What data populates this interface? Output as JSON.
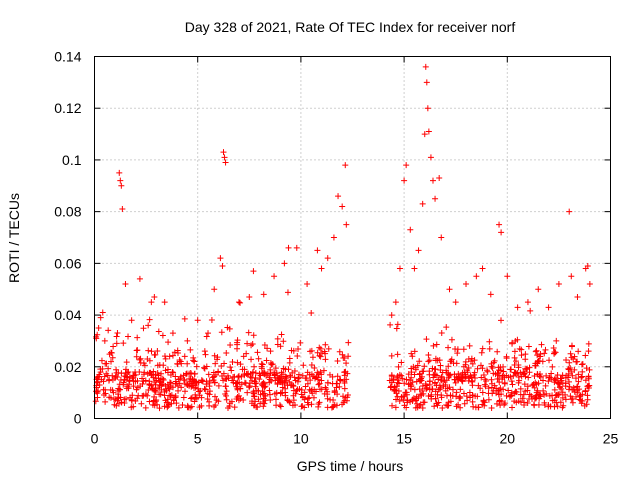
{
  "chart_data": {
    "type": "scatter",
    "title": "Day 328 of 2021, Rate Of TEC Index for receiver norf",
    "xlabel": "GPS time / hours",
    "ylabel": "ROTI / TECUs",
    "xlim": [
      0,
      25
    ],
    "ylim": [
      0,
      0.14
    ],
    "x_ticks": [
      0,
      5,
      10,
      15,
      20,
      25
    ],
    "x_tick_labels": [
      "0",
      "5",
      "10",
      "15",
      "20",
      "25"
    ],
    "y_ticks": [
      0,
      0.02,
      0.04,
      0.06,
      0.08,
      0.1,
      0.12,
      0.14
    ],
    "y_tick_labels": [
      "0",
      "0.02",
      "0.04",
      "0.06",
      "0.08",
      "0.1",
      "0.12",
      "0.14"
    ],
    "grid": true,
    "marker": "plus",
    "series_color": "#ff0000",
    "data_gaps_hours": [
      [
        12.3,
        14.3
      ]
    ],
    "series": [
      {
        "name": "ROTI",
        "points": [
          [
            0.1,
            0.012
          ],
          [
            0.2,
            0.035
          ],
          [
            0.3,
            0.039
          ],
          [
            0.4,
            0.041
          ],
          [
            0.5,
            0.03
          ],
          [
            0.8,
            0.022
          ],
          [
            1.2,
            0.095
          ],
          [
            1.25,
            0.092
          ],
          [
            1.3,
            0.09
          ],
          [
            1.35,
            0.081
          ],
          [
            1.5,
            0.052
          ],
          [
            1.8,
            0.038
          ],
          [
            2.2,
            0.054
          ],
          [
            2.6,
            0.036
          ],
          [
            2.9,
            0.047
          ],
          [
            3.4,
            0.045
          ],
          [
            3.8,
            0.033
          ],
          [
            4.5,
            0.03
          ],
          [
            5.0,
            0.038
          ],
          [
            5.5,
            0.033
          ],
          [
            5.8,
            0.05
          ],
          [
            6.1,
            0.062
          ],
          [
            6.2,
            0.059
          ],
          [
            6.25,
            0.103
          ],
          [
            6.3,
            0.101
          ],
          [
            6.35,
            0.099
          ],
          [
            7.0,
            0.045
          ],
          [
            7.5,
            0.047
          ],
          [
            7.7,
            0.057
          ],
          [
            8.2,
            0.048
          ],
          [
            8.7,
            0.055
          ],
          [
            9.2,
            0.06
          ],
          [
            9.4,
            0.066
          ],
          [
            9.8,
            0.066
          ],
          [
            10.3,
            0.052
          ],
          [
            10.8,
            0.065
          ],
          [
            11.0,
            0.058
          ],
          [
            11.3,
            0.062
          ],
          [
            11.6,
            0.07
          ],
          [
            11.8,
            0.086
          ],
          [
            12.0,
            0.082
          ],
          [
            12.15,
            0.098
          ],
          [
            12.2,
            0.075
          ],
          [
            14.4,
            0.04
          ],
          [
            14.6,
            0.045
          ],
          [
            14.8,
            0.058
          ],
          [
            15.0,
            0.092
          ],
          [
            15.1,
            0.098
          ],
          [
            15.3,
            0.073
          ],
          [
            15.5,
            0.058
          ],
          [
            15.7,
            0.065
          ],
          [
            15.9,
            0.083
          ],
          [
            16.0,
            0.11
          ],
          [
            16.05,
            0.136
          ],
          [
            16.1,
            0.13
          ],
          [
            16.15,
            0.12
          ],
          [
            16.2,
            0.111
          ],
          [
            16.3,
            0.101
          ],
          [
            16.4,
            0.092
          ],
          [
            16.5,
            0.085
          ],
          [
            16.7,
            0.093
          ],
          [
            16.8,
            0.07
          ],
          [
            17.2,
            0.05
          ],
          [
            17.5,
            0.045
          ],
          [
            18.0,
            0.052
          ],
          [
            18.5,
            0.055
          ],
          [
            18.8,
            0.058
          ],
          [
            19.2,
            0.048
          ],
          [
            19.6,
            0.075
          ],
          [
            19.7,
            0.072
          ],
          [
            20.0,
            0.055
          ],
          [
            20.5,
            0.043
          ],
          [
            21.0,
            0.045
          ],
          [
            21.5,
            0.05
          ],
          [
            22.0,
            0.043
          ],
          [
            22.5,
            0.052
          ],
          [
            23.0,
            0.08
          ],
          [
            23.1,
            0.055
          ],
          [
            23.4,
            0.047
          ],
          [
            23.8,
            0.058
          ],
          [
            23.9,
            0.059
          ],
          [
            24.0,
            0.052
          ]
        ]
      }
    ]
  }
}
